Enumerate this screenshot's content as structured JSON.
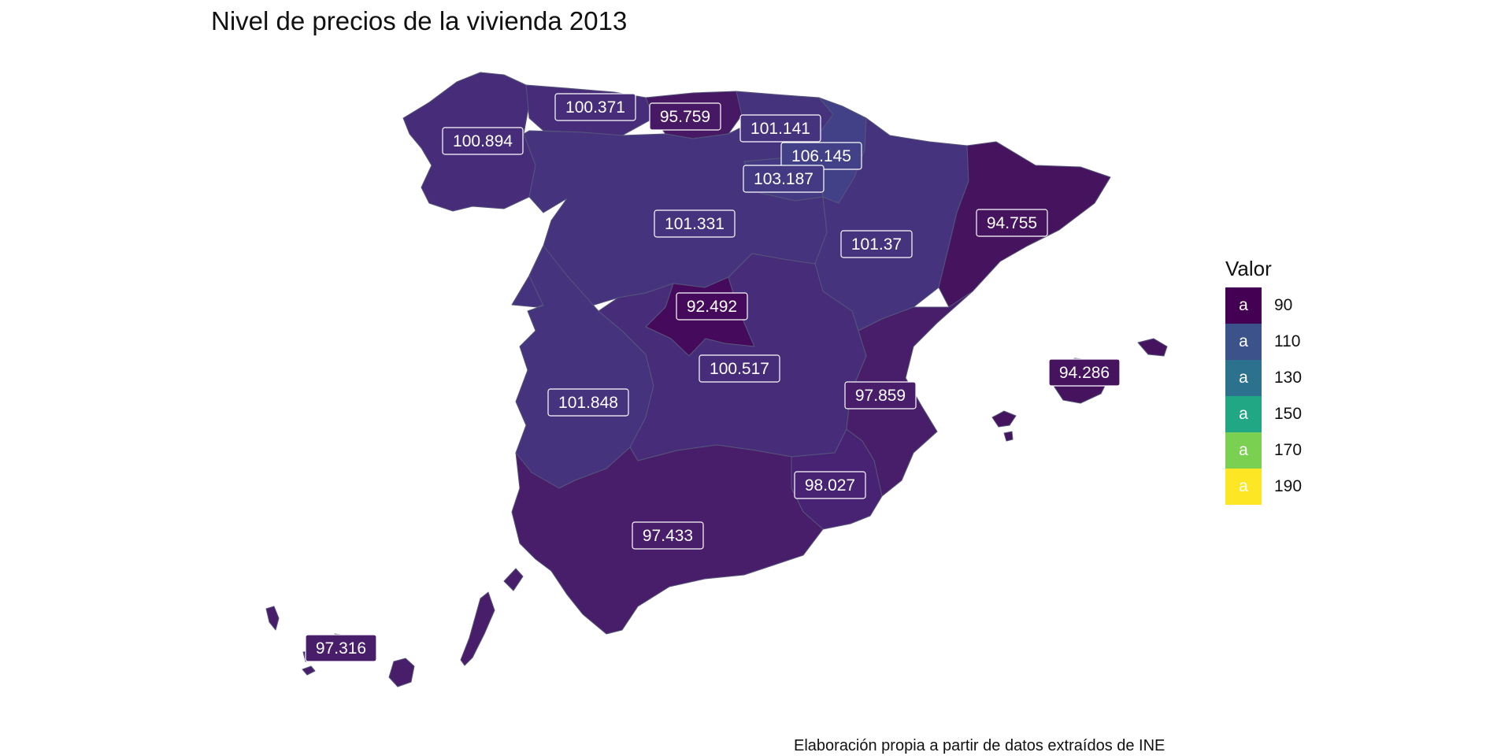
{
  "title": "Nivel de precios de la vivienda 2013",
  "caption": "Elaboración propia a partir de datos extraídos de INE",
  "legend": {
    "title": "Valor",
    "key_glyph": "a",
    "items": [
      {
        "value": "90",
        "color": "#440154"
      },
      {
        "value": "110",
        "color": "#3b528b"
      },
      {
        "value": "130",
        "color": "#2c728e"
      },
      {
        "value": "150",
        "color": "#21a784"
      },
      {
        "value": "170",
        "color": "#7ad151"
      },
      {
        "value": "190",
        "color": "#fde725"
      }
    ]
  },
  "colors": {
    "c92": "#460a5d",
    "c94": "#46145f",
    "c95": "#471863",
    "c97": "#481e6a",
    "c98": "#482373",
    "c100": "#472c7a",
    "c101": "#46337e",
    "c103": "#443a83",
    "c106": "#424187",
    "border": "#55557a"
  },
  "regions": [
    {
      "name": "Galicia",
      "value": "100.894"
    },
    {
      "name": "Asturias",
      "value": "100.371"
    },
    {
      "name": "Cantabria",
      "value": "95.759"
    },
    {
      "name": "País Vasco",
      "value": "101.141"
    },
    {
      "name": "Navarra",
      "value": "106.145"
    },
    {
      "name": "La Rioja",
      "value": "103.187"
    },
    {
      "name": "Castilla y León",
      "value": "101.331"
    },
    {
      "name": "Aragón",
      "value": "101.37"
    },
    {
      "name": "Cataluña",
      "value": "94.755"
    },
    {
      "name": "Madrid",
      "value": "92.492"
    },
    {
      "name": "Castilla-La Mancha",
      "value": "100.517"
    },
    {
      "name": "Extremadura",
      "value": "101.848"
    },
    {
      "name": "Comunidad Valenciana",
      "value": "97.859"
    },
    {
      "name": "Murcia",
      "value": "98.027"
    },
    {
      "name": "Andalucía",
      "value": "97.433"
    },
    {
      "name": "Islas Baleares",
      "value": "94.286"
    },
    {
      "name": "Canarias",
      "value": "97.316"
    }
  ]
}
